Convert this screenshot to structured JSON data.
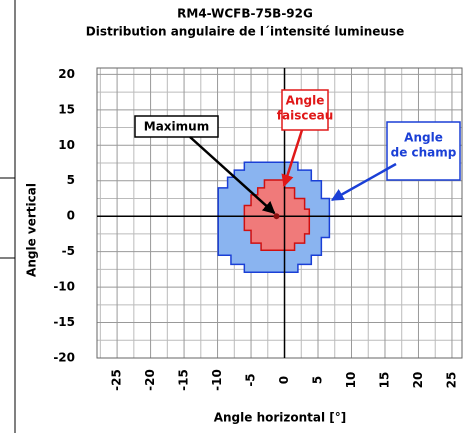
{
  "chart_data": {
    "type": "region",
    "title": "RM4-WCFB-75B-92G",
    "subtitle": "Distribution angulaire de l´intensité lumineuse",
    "x_label": "Angle horizontal [°]",
    "y_label": "Angle vertical",
    "xlim": [
      -28,
      26.5
    ],
    "ylim": [
      -20,
      20.9
    ],
    "xticks": [
      -25,
      -20,
      -15,
      -10,
      -5,
      0,
      5,
      10,
      15,
      20,
      25
    ],
    "yticks": [
      -20,
      -15,
      -10,
      -5,
      0,
      5,
      10,
      15,
      20
    ],
    "xminorticks": [
      -27.5,
      -22.5,
      -17.5,
      -12.5,
      -7.5,
      -2.5,
      2.5,
      7.5,
      12.5,
      17.5,
      22.5
    ],
    "yminorticks": [
      -17.5,
      -12.5,
      -7.5,
      -2.5,
      2.5,
      7.5,
      12.5,
      17.5
    ],
    "grid": true,
    "regions": [
      {
        "color": "#8ab4f0",
        "edge": "#1a3fd6",
        "x": [
          -6,
          2,
          2,
          4,
          4,
          5.5,
          5.5,
          6.7,
          6.7,
          5.5,
          5.5,
          4,
          4,
          2,
          2,
          -6,
          -6,
          -8,
          -8,
          -9.9,
          -9.9,
          -8.5,
          -8.5,
          -7.5,
          -7.5,
          -6
        ],
        "y": [
          7.6,
          7.6,
          6.5,
          6.5,
          5,
          5,
          2.5,
          2.5,
          -3,
          -3,
          -5.5,
          -5.5,
          -6.8,
          -6.8,
          -7.9,
          -7.9,
          -6.8,
          -6.8,
          -5.5,
          -5.5,
          4,
          4,
          5.5,
          5.5,
          6.5,
          6.5
        ]
      },
      {
        "color": "#f07a7a",
        "edge": "#d01010",
        "x": [
          -3,
          0,
          0,
          1.5,
          1.5,
          3,
          3,
          3.7,
          3.7,
          3,
          3,
          1.5,
          1.5,
          -3.5,
          -3.5,
          -5,
          -5,
          -6,
          -6,
          -5,
          -5,
          -4,
          -4,
          -3
        ],
        "y": [
          5.1,
          5.1,
          4,
          4,
          2.5,
          2.5,
          1,
          1,
          -2.5,
          -2.5,
          -3.8,
          -3.8,
          -4.8,
          -4.8,
          -3.8,
          -3.8,
          -2,
          -2,
          1.5,
          1.5,
          3,
          3,
          4,
          4
        ]
      }
    ],
    "maximum": {
      "x": -1.2,
      "y": 0
    },
    "annotations": [
      {
        "lines": [
          "Maximum"
        ],
        "color": "#000000"
      },
      {
        "lines": [
          "Angle",
          "faisceau"
        ],
        "color": "#e01818"
      },
      {
        "lines": [
          "Angle",
          "de champ"
        ],
        "color": "#1a3fd6"
      }
    ]
  }
}
